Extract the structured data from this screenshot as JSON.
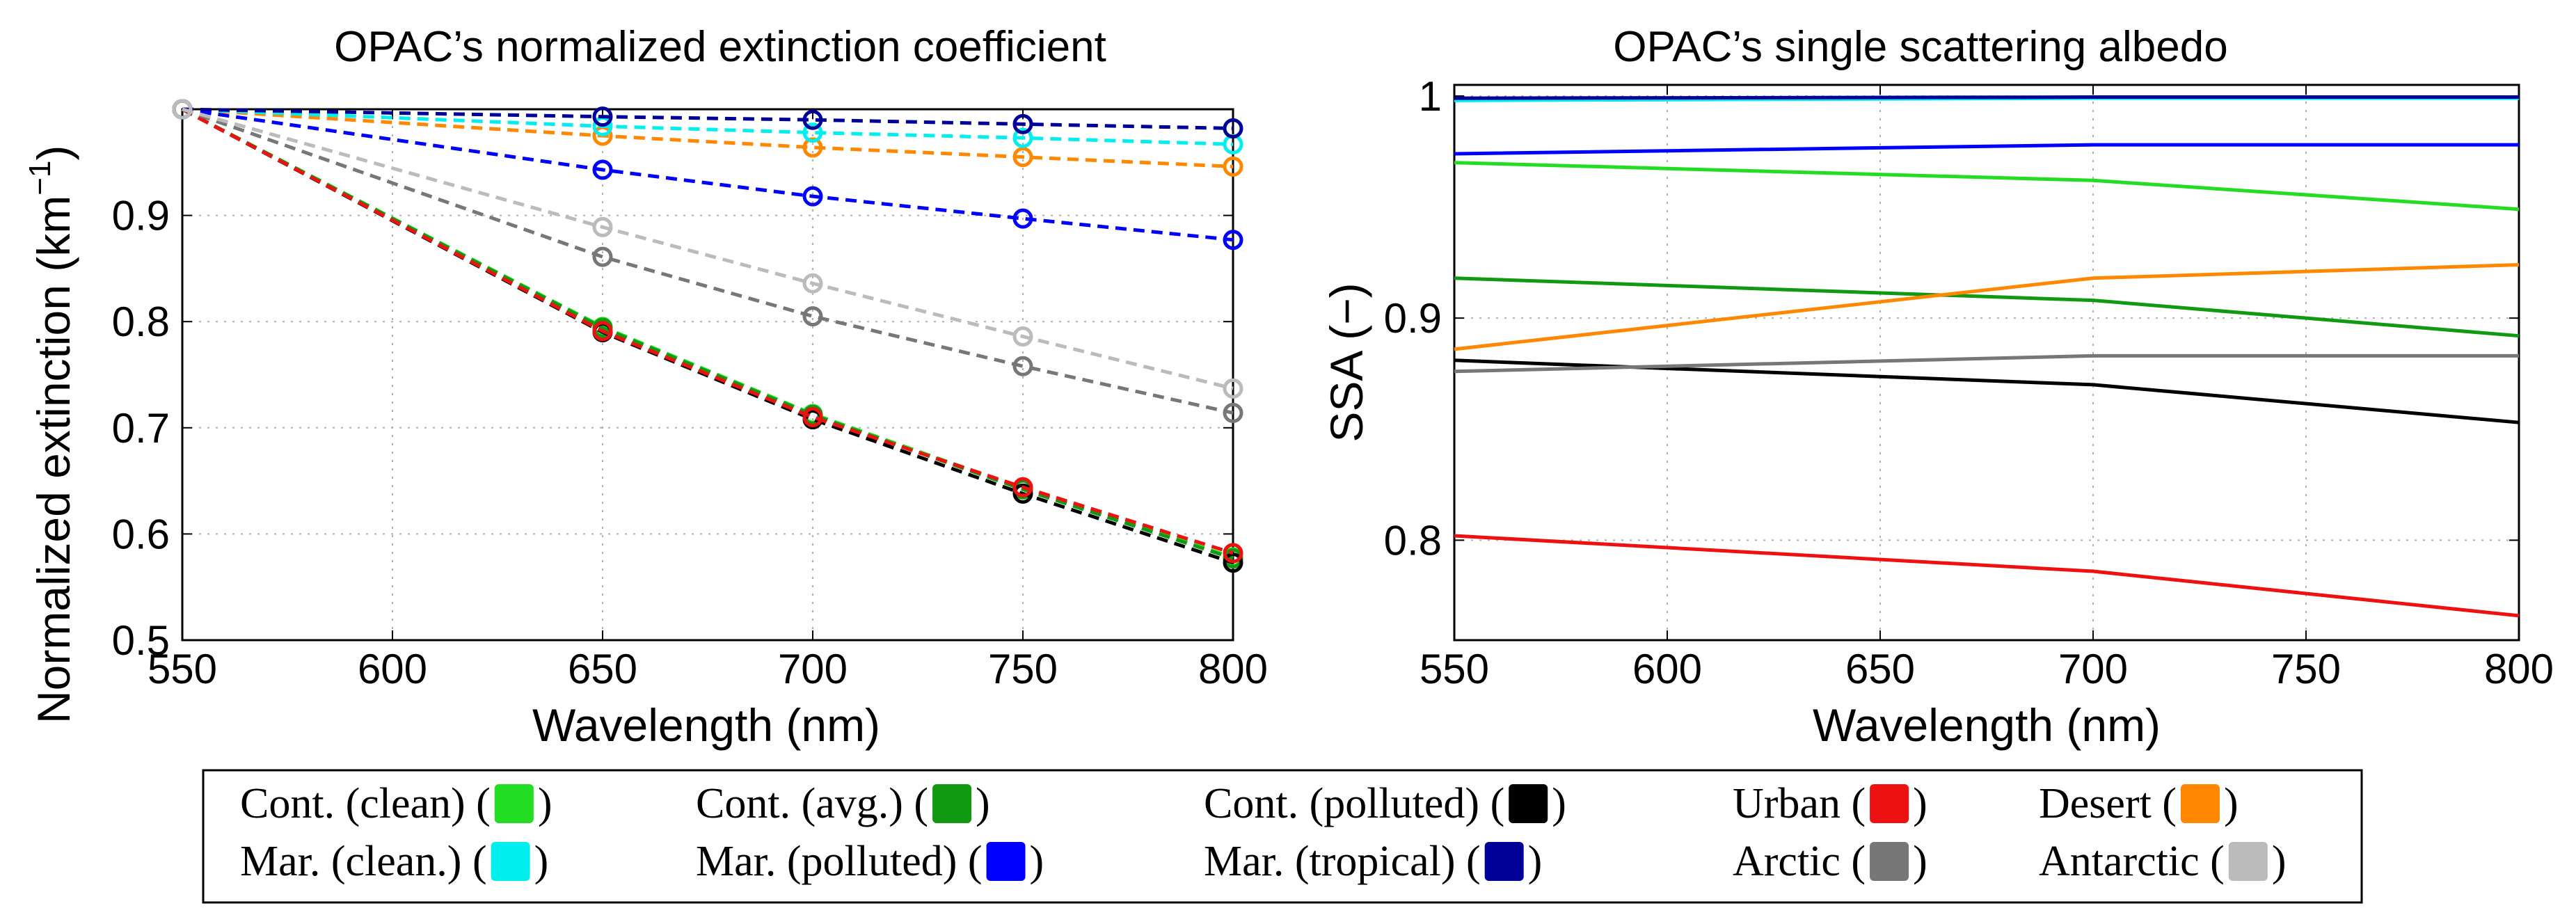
{
  "chart_data": [
    {
      "type": "line",
      "title": "OPAC’s normalized extinction coefficient",
      "xlabel": "Wavelength (nm)",
      "ylabel_main": "Normalized extinction (km",
      "ylabel_sup": "−1",
      "ylabel_close": ")",
      "xlim": [
        550,
        800
      ],
      "ylim": [
        0.5,
        1.0
      ],
      "grid": true,
      "xticks": [
        550,
        600,
        650,
        700,
        750,
        800
      ],
      "xtick_labels": [
        "550",
        "600",
        "650",
        "700",
        "750",
        "800"
      ],
      "yticks": [
        0.5,
        0.6,
        0.7,
        0.8,
        0.9
      ],
      "ytick_labels": [
        "0.5",
        "0.6",
        "0.7",
        "0.8",
        "0.9"
      ],
      "x": [
        550,
        650,
        700,
        750,
        800
      ],
      "line_style": "dashed",
      "marker": "circle",
      "series": [
        {
          "key": "cont-clean",
          "color": "#22dd22",
          "values": [
            1.0,
            0.795,
            0.713,
            0.643,
            0.578
          ]
        },
        {
          "key": "cont-avg",
          "color": "#119911",
          "values": [
            1.0,
            0.794,
            0.712,
            0.642,
            0.577
          ]
        },
        {
          "key": "cont-polluted",
          "color": "#000000",
          "values": [
            1.0,
            0.79,
            0.708,
            0.638,
            0.573
          ]
        },
        {
          "key": "urban",
          "color": "#ee1111",
          "values": [
            1.0,
            0.791,
            0.71,
            0.644,
            0.582
          ]
        },
        {
          "key": "desert",
          "color": "#ff8800",
          "values": [
            1.0,
            0.975,
            0.964,
            0.955,
            0.946
          ]
        },
        {
          "key": "mar-clean",
          "color": "#00eeee",
          "values": [
            1.0,
            0.984,
            0.978,
            0.973,
            0.967
          ]
        },
        {
          "key": "mar-polluted",
          "color": "#0000ff",
          "values": [
            1.0,
            0.943,
            0.918,
            0.897,
            0.877
          ]
        },
        {
          "key": "mar-tropical",
          "color": "#000099",
          "values": [
            1.0,
            0.993,
            0.99,
            0.986,
            0.982
          ]
        },
        {
          "key": "arctic",
          "color": "#777777",
          "values": [
            1.0,
            0.861,
            0.805,
            0.758,
            0.714
          ]
        },
        {
          "key": "antarctic",
          "color": "#bbbbbb",
          "values": [
            1.0,
            0.889,
            0.836,
            0.786,
            0.737
          ]
        }
      ]
    },
    {
      "type": "line",
      "title": "OPAC’s single scattering albedo",
      "xlabel": "Wavelength (nm)",
      "ylabel": "SSA (−)",
      "xlim": [
        550,
        800
      ],
      "ylim": [
        0.755,
        1.005
      ],
      "grid": true,
      "xticks": [
        550,
        600,
        650,
        700,
        750,
        800
      ],
      "xtick_labels": [
        "550",
        "600",
        "650",
        "700",
        "750",
        "800"
      ],
      "yticks": [
        0.8,
        0.9,
        1.0
      ],
      "ytick_labels": [
        "0.8",
        "0.9",
        "1"
      ],
      "x": [
        550,
        700,
        800
      ],
      "line_style": "solid",
      "series": [
        {
          "key": "mar-clean",
          "color": "#00eeee",
          "values": [
            0.998,
            0.999,
            0.999
          ]
        },
        {
          "key": "mar-tropical",
          "color": "#000099",
          "values": [
            0.999,
            0.9995,
            0.9995
          ]
        },
        {
          "key": "mar-polluted",
          "color": "#0000ff",
          "values": [
            0.974,
            0.978,
            0.978
          ]
        },
        {
          "key": "cont-clean",
          "color": "#22dd22",
          "values": [
            0.97,
            0.962,
            0.949
          ]
        },
        {
          "key": "cont-avg",
          "color": "#119911",
          "values": [
            0.918,
            0.908,
            0.892
          ]
        },
        {
          "key": "desert",
          "color": "#ff8800",
          "values": [
            0.886,
            0.918,
            0.924
          ]
        },
        {
          "key": "cont-polluted",
          "color": "#000000",
          "values": [
            0.881,
            0.87,
            0.853
          ]
        },
        {
          "key": "arctic",
          "color": "#777777",
          "values": [
            0.876,
            0.883,
            0.883
          ]
        },
        {
          "key": "urban",
          "color": "#ee1111",
          "values": [
            0.802,
            0.786,
            0.766
          ]
        }
      ]
    }
  ],
  "legend": {
    "placement": "bottom",
    "rows": [
      [
        {
          "key": "cont-clean",
          "label": "Cont. (clean) (",
          "color": "#22dd22"
        },
        {
          "key": "cont-avg",
          "label": "Cont. (avg.) (",
          "color": "#119911"
        },
        {
          "key": "cont-polluted",
          "label": "Cont. (polluted) (",
          "color": "#000000"
        },
        {
          "key": "urban",
          "label": "Urban (",
          "color": "#ee1111"
        },
        {
          "key": "desert",
          "label": "Desert (",
          "color": "#ff8800"
        }
      ],
      [
        {
          "key": "mar-clean",
          "label": "Mar. (clean.) (",
          "color": "#00eeee"
        },
        {
          "key": "mar-polluted",
          "label": "Mar. (polluted) (",
          "color": "#0000ff"
        },
        {
          "key": "mar-tropical",
          "label": "Mar. (tropical) (",
          "color": "#000099"
        },
        {
          "key": "arctic",
          "label": "Arctic (",
          "color": "#777777"
        },
        {
          "key": "antarctic",
          "label": "Antarctic (",
          "color": "#bbbbbb"
        }
      ]
    ],
    "close_paren": ")"
  }
}
